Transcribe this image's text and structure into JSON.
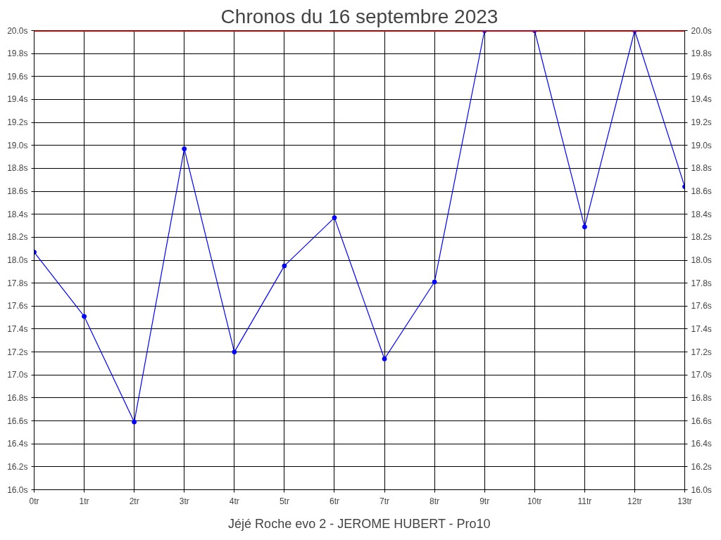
{
  "chart_data": {
    "type": "line",
    "title": "Chronos du 16 septembre 2023",
    "annotations": [
      "Jéjé Roche evo 2 - JEROME HUBERT - Pro10"
    ],
    "x": [
      0,
      1,
      2,
      3,
      4,
      5,
      6,
      7,
      8,
      9,
      10,
      11,
      12,
      13
    ],
    "series": [
      {
        "color": "#0000ff",
        "values": [
          18.07,
          17.51,
          16.59,
          18.97,
          17.2,
          17.95,
          18.37,
          17.14,
          17.81,
          20.0,
          20.0,
          18.29,
          20.0,
          18.64
        ]
      }
    ],
    "xlim": [
      0,
      13
    ],
    "xticks": [
      {
        "value": 0,
        "label": "0tr"
      },
      {
        "value": 1,
        "label": "1tr"
      },
      {
        "value": 2,
        "label": "2tr"
      },
      {
        "value": 3,
        "label": "3tr"
      },
      {
        "value": 4,
        "label": "4tr"
      },
      {
        "value": 5,
        "label": "5tr"
      },
      {
        "value": 6,
        "label": "6tr"
      },
      {
        "value": 7,
        "label": "7tr"
      },
      {
        "value": 8,
        "label": "8tr"
      },
      {
        "value": 9,
        "label": "9tr"
      },
      {
        "value": 10,
        "label": "10tr"
      },
      {
        "value": 11,
        "label": "11tr"
      },
      {
        "value": 12,
        "label": "12tr"
      },
      {
        "value": 13,
        "label": "13tr"
      }
    ],
    "ylim": [
      16.0,
      20.0
    ],
    "yticks": [
      {
        "value": 16.0,
        "label": "16.0s"
      },
      {
        "value": 16.2,
        "label": "16.2s"
      },
      {
        "value": 16.4,
        "label": "16.4s"
      },
      {
        "value": 16.6,
        "label": "16.6s"
      },
      {
        "value": 16.8,
        "label": "16.8s"
      },
      {
        "value": 17.0,
        "label": "17.0s"
      },
      {
        "value": 17.2,
        "label": "17.2s"
      },
      {
        "value": 17.4,
        "label": "17.4s"
      },
      {
        "value": 17.6,
        "label": "17.6s"
      },
      {
        "value": 17.8,
        "label": "17.8s"
      },
      {
        "value": 18.0,
        "label": "18.0s"
      },
      {
        "value": 18.2,
        "label": "18.2s"
      },
      {
        "value": 18.4,
        "label": "18.4s"
      },
      {
        "value": 18.6,
        "label": "18.6s"
      },
      {
        "value": 18.8,
        "label": "18.8s"
      },
      {
        "value": 19.0,
        "label": "19.0s"
      },
      {
        "value": 19.2,
        "label": "19.2s"
      },
      {
        "value": 19.4,
        "label": "19.4s"
      },
      {
        "value": 19.6,
        "label": "19.6s"
      },
      {
        "value": 19.8,
        "label": "19.8s"
      },
      {
        "value": 20.0,
        "label": "20.0s"
      }
    ],
    "y2lim": [
      16.0,
      20.0
    ],
    "y2ticks": [
      {
        "value": 16.0,
        "label": "16.0s"
      },
      {
        "value": 16.2,
        "label": "16.2s"
      },
      {
        "value": 16.4,
        "label": "16.4s"
      },
      {
        "value": 16.6,
        "label": "16.6s"
      },
      {
        "value": 16.8,
        "label": "16.8s"
      },
      {
        "value": 17.0,
        "label": "17.0s"
      },
      {
        "value": 17.2,
        "label": "17.2s"
      },
      {
        "value": 17.4,
        "label": "17.4s"
      },
      {
        "value": 17.6,
        "label": "17.6s"
      },
      {
        "value": 17.8,
        "label": "17.8s"
      },
      {
        "value": 18.0,
        "label": "18.0s"
      },
      {
        "value": 18.2,
        "label": "18.2s"
      },
      {
        "value": 18.4,
        "label": "18.4s"
      },
      {
        "value": 18.6,
        "label": "18.6s"
      },
      {
        "value": 18.8,
        "label": "18.8s"
      },
      {
        "value": 19.0,
        "label": "19.0s"
      },
      {
        "value": 19.2,
        "label": "19.2s"
      },
      {
        "value": 19.4,
        "label": "19.4s"
      },
      {
        "value": 19.6,
        "label": "19.6s"
      },
      {
        "value": 19.8,
        "label": "19.8s"
      },
      {
        "value": 20.0,
        "label": "20.0s"
      }
    ],
    "ref_lines": [
      {
        "axis": "y",
        "value": 20.0,
        "color": "#ff0000"
      }
    ],
    "grid": true,
    "marker": "circle",
    "line_style": "solid"
  }
}
